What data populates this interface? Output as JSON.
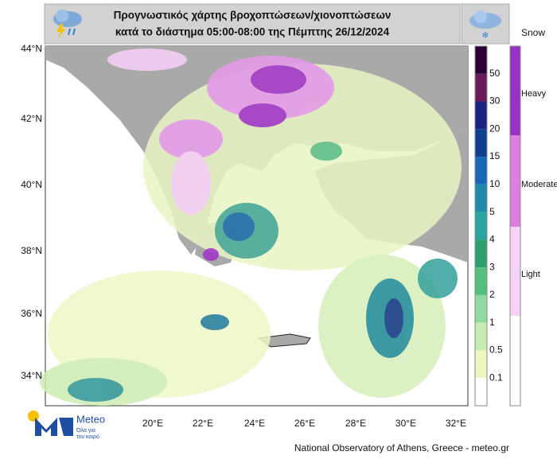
{
  "header": {
    "title_line1": "Προγνωστικός χάρτης βροχοπτώσεων/χιονοπτώσεων",
    "title_line2": "κατά το διάστημα 05:00-08:00 της Πέμπτης 26/12/2024"
  },
  "map": {
    "lat_labels": [
      "44°N",
      "42°N",
      "40°N",
      "38°N",
      "36°N",
      "34°N"
    ],
    "lon_labels": [
      "20°E",
      "22°E",
      "24°E",
      "26°E",
      "28°E",
      "30°E",
      "32°E"
    ]
  },
  "rain_legend": {
    "labels": [
      50,
      30,
      20,
      15,
      10,
      5,
      4,
      3,
      2,
      1,
      0.5,
      0.1
    ]
  },
  "snow_legend": {
    "title": "Snow",
    "labels": [
      "Heavy",
      "Moderate",
      "Light"
    ]
  },
  "logo": {
    "name": "Meteo",
    "tagline_line1": "Όλα για",
    "tagline_line2": "τον καιρό"
  },
  "footer": {
    "credit": "National Observatory of Athens, Greece - meteo.gr"
  }
}
